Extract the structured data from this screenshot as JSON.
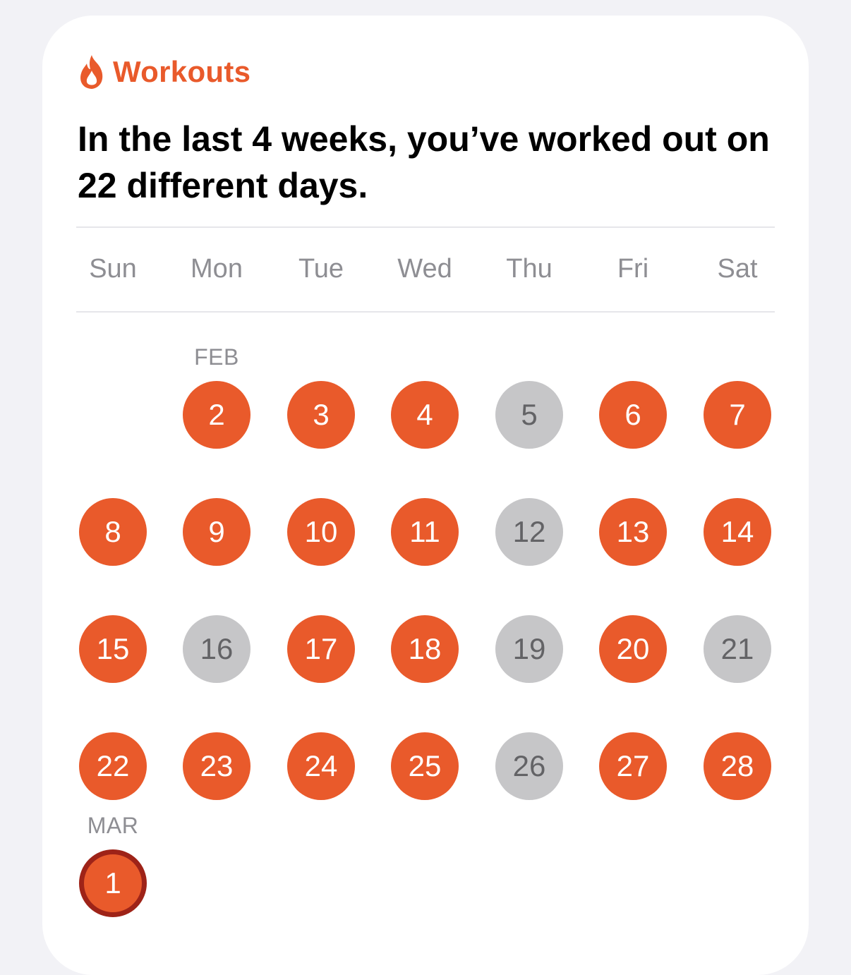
{
  "widget": {
    "title": "Workouts",
    "icon": "flame-icon",
    "accent_color": "#e95a2b",
    "headline_line1": "In the last 4 weeks, you’ve worked out on",
    "headline_line2": "22 different days."
  },
  "weekdays": [
    "Sun",
    "Mon",
    "Tue",
    "Wed",
    "Thu",
    "Fri",
    "Sat"
  ],
  "months": {
    "feb": "FEB",
    "mar": "MAR"
  },
  "calendar": {
    "active_color": "#e95a2b",
    "inactive_color": "#c6c6c8",
    "today_ring_color": "#9e2318",
    "days": [
      {
        "day": "2",
        "weekday": 1,
        "week": 0,
        "status": "active"
      },
      {
        "day": "3",
        "weekday": 2,
        "week": 0,
        "status": "active"
      },
      {
        "day": "4",
        "weekday": 3,
        "week": 0,
        "status": "active"
      },
      {
        "day": "5",
        "weekday": 4,
        "week": 0,
        "status": "inactive"
      },
      {
        "day": "6",
        "weekday": 5,
        "week": 0,
        "status": "active"
      },
      {
        "day": "7",
        "weekday": 6,
        "week": 0,
        "status": "active"
      },
      {
        "day": "8",
        "weekday": 0,
        "week": 1,
        "status": "active"
      },
      {
        "day": "9",
        "weekday": 1,
        "week": 1,
        "status": "active"
      },
      {
        "day": "10",
        "weekday": 2,
        "week": 1,
        "status": "active"
      },
      {
        "day": "11",
        "weekday": 3,
        "week": 1,
        "status": "active"
      },
      {
        "day": "12",
        "weekday": 4,
        "week": 1,
        "status": "inactive"
      },
      {
        "day": "13",
        "weekday": 5,
        "week": 1,
        "status": "active"
      },
      {
        "day": "14",
        "weekday": 6,
        "week": 1,
        "status": "active"
      },
      {
        "day": "15",
        "weekday": 0,
        "week": 2,
        "status": "active"
      },
      {
        "day": "16",
        "weekday": 1,
        "week": 2,
        "status": "inactive"
      },
      {
        "day": "17",
        "weekday": 2,
        "week": 2,
        "status": "active"
      },
      {
        "day": "18",
        "weekday": 3,
        "week": 2,
        "status": "active"
      },
      {
        "day": "19",
        "weekday": 4,
        "week": 2,
        "status": "inactive"
      },
      {
        "day": "20",
        "weekday": 5,
        "week": 2,
        "status": "active"
      },
      {
        "day": "21",
        "weekday": 6,
        "week": 2,
        "status": "inactive"
      },
      {
        "day": "22",
        "weekday": 0,
        "week": 3,
        "status": "active"
      },
      {
        "day": "23",
        "weekday": 1,
        "week": 3,
        "status": "active"
      },
      {
        "day": "24",
        "weekday": 2,
        "week": 3,
        "status": "active"
      },
      {
        "day": "25",
        "weekday": 3,
        "week": 3,
        "status": "active"
      },
      {
        "day": "26",
        "weekday": 4,
        "week": 3,
        "status": "inactive"
      },
      {
        "day": "27",
        "weekday": 5,
        "week": 3,
        "status": "active"
      },
      {
        "day": "28",
        "weekday": 6,
        "week": 3,
        "status": "active"
      },
      {
        "day": "1",
        "weekday": 0,
        "week": 4,
        "status": "today"
      }
    ]
  }
}
